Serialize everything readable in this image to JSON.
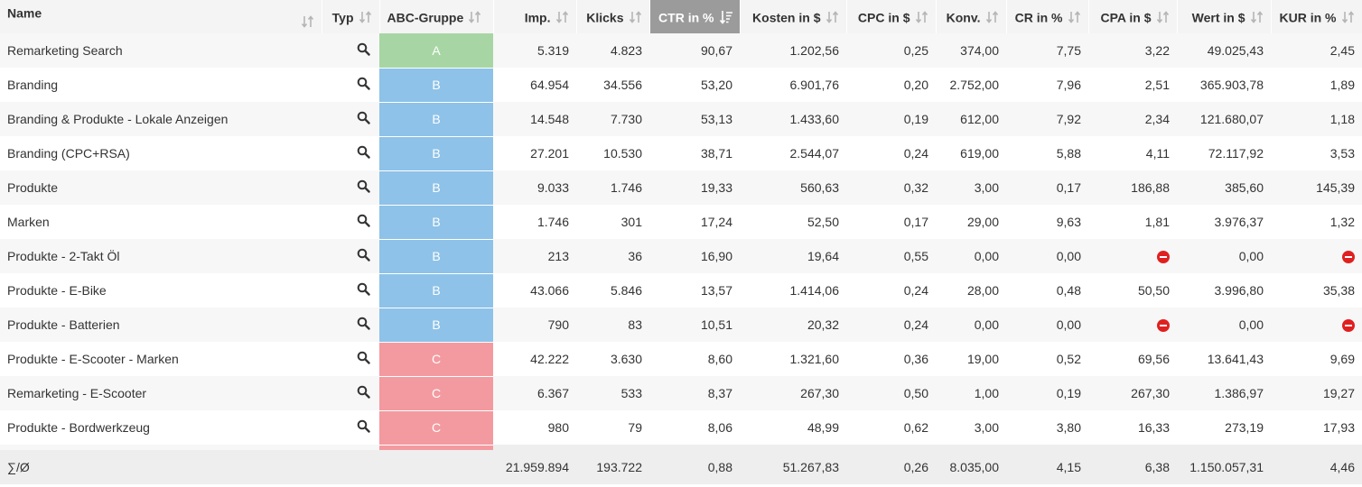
{
  "columns": {
    "name": "Name",
    "typ": "Typ",
    "group": "ABC-Gruppe",
    "imp": "Imp.",
    "klicks": "Klicks",
    "ctr": "CTR in %",
    "kosten": "Kosten in $",
    "cpc": "CPC in $",
    "konv": "Konv.",
    "cr": "CR in %",
    "cpa": "CPA in $",
    "wert": "Wert in $",
    "kur": "KUR in %"
  },
  "sorted_column": "ctr",
  "colors": {
    "group_A": "#a7d6a4",
    "group_B": "#8ec2e8",
    "group_C": "#f39aa0",
    "sorted_header": "#9b9b9b",
    "stop_icon": "#e02020"
  },
  "rows": [
    {
      "name": "Remarketing Search",
      "group": "A",
      "imp": "5.319",
      "klicks": "4.823",
      "ctr": "90,67",
      "kosten": "1.202,56",
      "cpc": "0,25",
      "konv": "374,00",
      "cr": "7,75",
      "cpa": "3,22",
      "wert": "49.025,43",
      "kur": "2,45"
    },
    {
      "name": "Branding",
      "group": "B",
      "imp": "64.954",
      "klicks": "34.556",
      "ctr": "53,20",
      "kosten": "6.901,76",
      "cpc": "0,20",
      "konv": "2.752,00",
      "cr": "7,96",
      "cpa": "2,51",
      "wert": "365.903,78",
      "kur": "1,89"
    },
    {
      "name": "Branding & Produkte - Lokale Anzeigen",
      "group": "B",
      "imp": "14.548",
      "klicks": "7.730",
      "ctr": "53,13",
      "kosten": "1.433,60",
      "cpc": "0,19",
      "konv": "612,00",
      "cr": "7,92",
      "cpa": "2,34",
      "wert": "121.680,07",
      "kur": "1,18"
    },
    {
      "name": "Branding (CPC+RSA)",
      "group": "B",
      "imp": "27.201",
      "klicks": "10.530",
      "ctr": "38,71",
      "kosten": "2.544,07",
      "cpc": "0,24",
      "konv": "619,00",
      "cr": "5,88",
      "cpa": "4,11",
      "wert": "72.117,92",
      "kur": "3,53"
    },
    {
      "name": "Produkte",
      "group": "B",
      "imp": "9.033",
      "klicks": "1.746",
      "ctr": "19,33",
      "kosten": "560,63",
      "cpc": "0,32",
      "konv": "3,00",
      "cr": "0,17",
      "cpa": "186,88",
      "wert": "385,60",
      "kur": "145,39"
    },
    {
      "name": "Marken",
      "group": "B",
      "imp": "1.746",
      "klicks": "301",
      "ctr": "17,24",
      "kosten": "52,50",
      "cpc": "0,17",
      "konv": "29,00",
      "cr": "9,63",
      "cpa": "1,81",
      "wert": "3.976,37",
      "kur": "1,32"
    },
    {
      "name": "Produkte - 2-Takt Öl",
      "group": "B",
      "imp": "213",
      "klicks": "36",
      "ctr": "16,90",
      "kosten": "19,64",
      "cpc": "0,55",
      "konv": "0,00",
      "cr": "0,00",
      "cpa": null,
      "wert": "0,00",
      "kur": null
    },
    {
      "name": "Produkte - E-Bike",
      "group": "B",
      "imp": "43.066",
      "klicks": "5.846",
      "ctr": "13,57",
      "kosten": "1.414,06",
      "cpc": "0,24",
      "konv": "28,00",
      "cr": "0,48",
      "cpa": "50,50",
      "wert": "3.996,80",
      "kur": "35,38"
    },
    {
      "name": "Produkte - Batterien",
      "group": "B",
      "imp": "790",
      "klicks": "83",
      "ctr": "10,51",
      "kosten": "20,32",
      "cpc": "0,24",
      "konv": "0,00",
      "cr": "0,00",
      "cpa": null,
      "wert": "0,00",
      "kur": null
    },
    {
      "name": "Produkte - E-Scooter - Marken",
      "group": "C",
      "imp": "42.222",
      "klicks": "3.630",
      "ctr": "8,60",
      "kosten": "1.321,60",
      "cpc": "0,36",
      "konv": "19,00",
      "cr": "0,52",
      "cpa": "69,56",
      "wert": "13.641,43",
      "kur": "9,69"
    },
    {
      "name": "Remarketing - E-Scooter",
      "group": "C",
      "imp": "6.367",
      "klicks": "533",
      "ctr": "8,37",
      "kosten": "267,30",
      "cpc": "0,50",
      "konv": "1,00",
      "cr": "0,19",
      "cpa": "267,30",
      "wert": "1.386,97",
      "kur": "19,27"
    },
    {
      "name": "Produkte - Bordwerkzeug",
      "group": "C",
      "imp": "980",
      "klicks": "79",
      "ctr": "8,06",
      "kosten": "48,99",
      "cpc": "0,62",
      "konv": "3,00",
      "cr": "3,80",
      "cpa": "16,33",
      "wert": "273,19",
      "kur": "17,93"
    }
  ],
  "totals": {
    "label": "∑/Ø",
    "imp": "21.959.894",
    "klicks": "193.722",
    "ctr": "0,88",
    "kosten": "51.267,83",
    "cpc": "0,26",
    "konv": "8.035,00",
    "cr": "4,15",
    "cpa": "6,38",
    "wert": "1.150.057,31",
    "kur": "4,46"
  }
}
